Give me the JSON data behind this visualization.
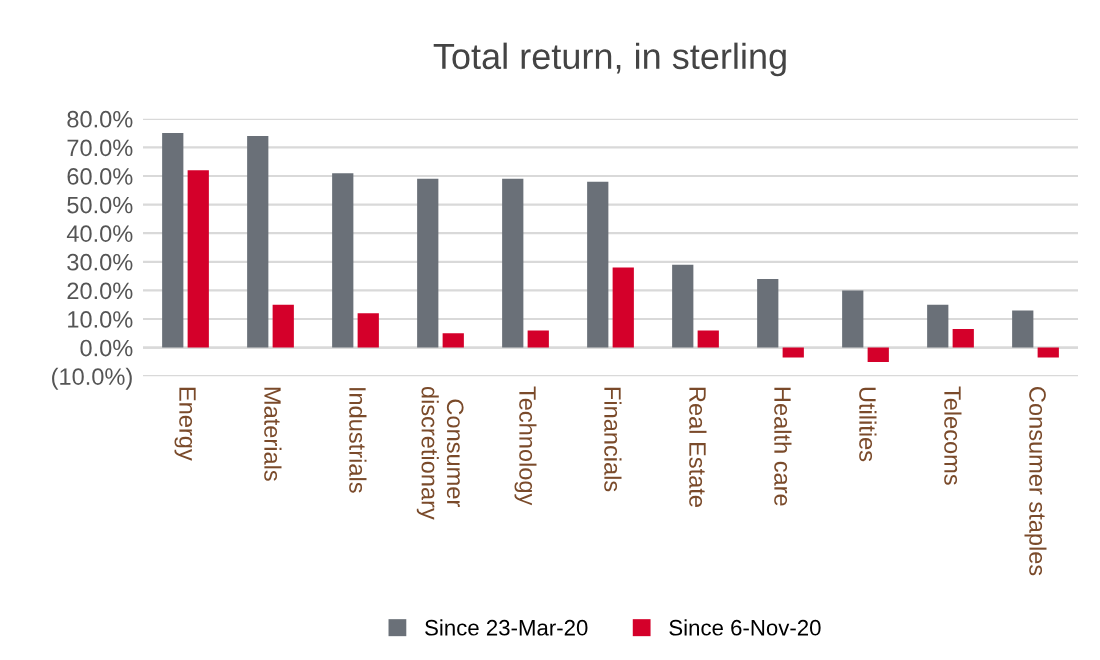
{
  "chart_data": {
    "type": "bar",
    "title": "Total return, in sterling",
    "categories": [
      "Energy",
      "Materials",
      "Industrials",
      "Consumer\ndiscretionary",
      "Technology",
      "Financials",
      "Real Estate",
      "Health care",
      "Utilities",
      "Telecoms",
      "Consumer staples"
    ],
    "series": [
      {
        "name": "Since 23-Mar-20",
        "color": "#6a7078",
        "values": [
          75,
          74,
          61,
          59,
          59,
          58,
          29,
          24,
          20,
          15,
          13
        ]
      },
      {
        "name": "Since 6-Nov-20",
        "color": "#d4002a",
        "values": [
          62,
          15,
          12,
          5,
          6,
          28,
          6,
          -3.5,
          -5,
          6.5,
          -3.5
        ]
      }
    ],
    "ylim": [
      -10,
      80
    ],
    "yticks": [
      {
        "value": -10,
        "label": "(10.0%)"
      },
      {
        "value": 0,
        "label": "0.0%"
      },
      {
        "value": 10,
        "label": "10.0%"
      },
      {
        "value": 20,
        "label": "20.0%"
      },
      {
        "value": 30,
        "label": "30.0%"
      },
      {
        "value": 40,
        "label": "40.0%"
      },
      {
        "value": 50,
        "label": "50.0%"
      },
      {
        "value": 60,
        "label": "60.0%"
      },
      {
        "value": 70,
        "label": "70.0%"
      },
      {
        "value": 80,
        "label": "80.0%"
      }
    ],
    "grid": "y",
    "legend": "bottom"
  }
}
